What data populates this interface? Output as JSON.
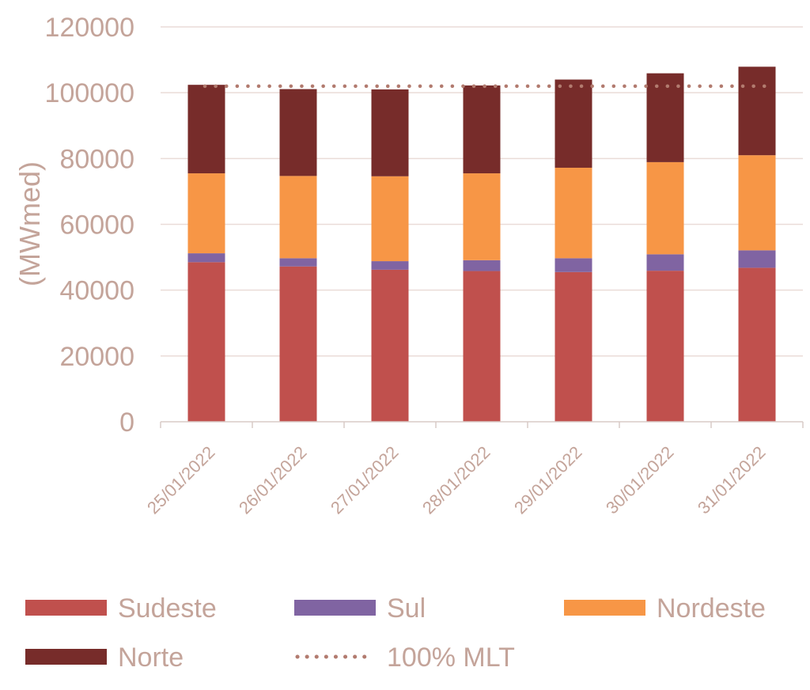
{
  "chart_data": {
    "type": "bar",
    "stacked": true,
    "ylabel": "(MWmed)",
    "ylim": [
      0,
      120000
    ],
    "yticks": [
      "0",
      "20000",
      "40000",
      "60000",
      "80000",
      "100000",
      "120000"
    ],
    "grid": true,
    "legend_position": "bottom",
    "categories": [
      "25/01/2022",
      "26/01/2022",
      "27/01/2022",
      "28/01/2022",
      "29/01/2022",
      "30/01/2022",
      "31/01/2022"
    ],
    "series": [
      {
        "name": "Sudeste",
        "color": "#c0504d",
        "values": [
          48500,
          47200,
          46200,
          45800,
          45500,
          45900,
          46800
        ]
      },
      {
        "name": "Sul",
        "color": "#8064a2",
        "values": [
          2700,
          2500,
          2600,
          3300,
          4200,
          5000,
          5300
        ]
      },
      {
        "name": "Nordeste",
        "color": "#f79646",
        "values": [
          24300,
          25000,
          25800,
          26400,
          27500,
          28000,
          28900
        ]
      },
      {
        "name": "Norte",
        "color": "#772c2a",
        "values": [
          26900,
          26400,
          26400,
          26700,
          26800,
          27000,
          26900
        ]
      }
    ],
    "line_series": {
      "name": "100% MLT",
      "color": "#b27b6f",
      "style": "dotted",
      "value": 102000
    }
  }
}
